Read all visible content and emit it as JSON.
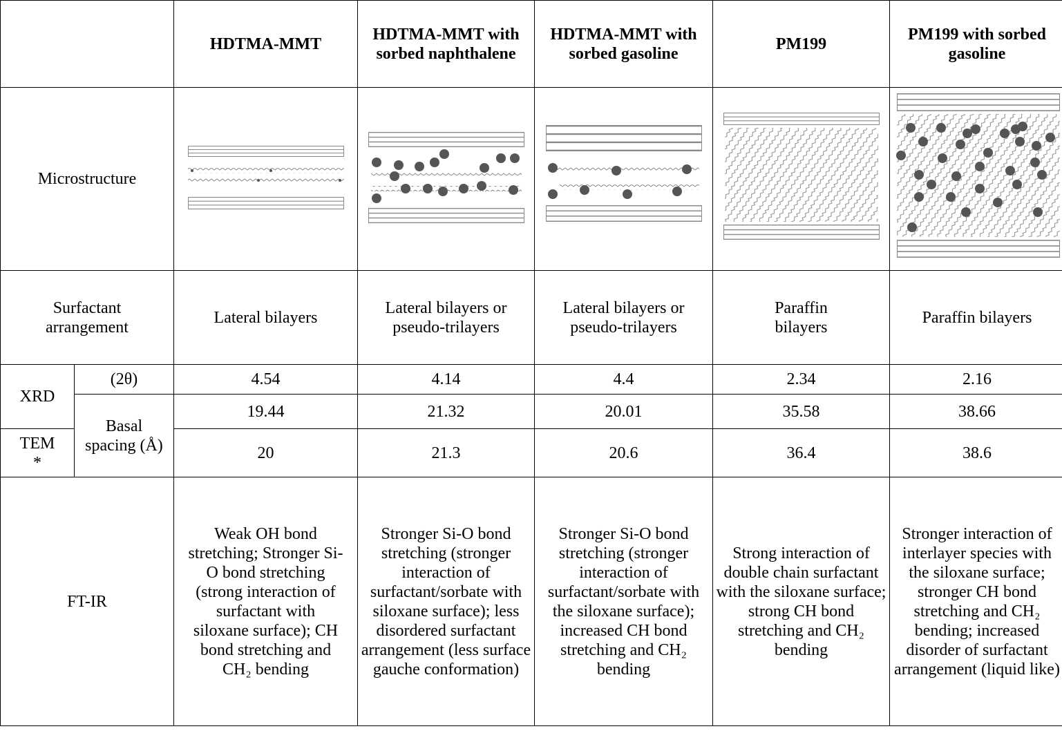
{
  "table": {
    "columns": [
      "HDTMA-MMT",
      "HDTMA-MMT with sorbed naphthalene",
      "HDTMA-MMT with sorbed gasoline",
      "PM199",
      "PM199 with sorbed gasoline"
    ],
    "microstructure": {
      "label": "Microstructure"
    },
    "surfactant": {
      "label": "Surfactant arrangement",
      "values": [
        "Lateral bilayers",
        "Lateral bilayers or pseudo-trilayers",
        "Lateral bilayers or pseudo-trilayers",
        "Paraffin bilayers",
        "Paraffin bilayers"
      ]
    },
    "xrd": {
      "label": "XRD",
      "theta_label": "(2θ)",
      "theta": [
        "4.54",
        "4.14",
        "4.4",
        "2.34",
        "2.16"
      ],
      "spacing": [
        "19.44",
        "21.32",
        "20.01",
        "35.58",
        "38.66"
      ]
    },
    "basal_label": "Basal spacing (Å)",
    "tem": {
      "label": "TEM *",
      "spacing": [
        "20",
        "21.3",
        "20.6",
        "36.4",
        "38.6"
      ]
    },
    "ftir": {
      "label": "FT-IR",
      "values": [
        "Weak OH bond stretching; Stronger Si-O bond stretching (strong interaction of surfactant with siloxane surface); CH bond stretching and CH₂ bending",
        "Stronger Si-O bond stretching (stronger interaction of surfactant/sorbate with siloxane surface); less disordered surfactant arrangement (less surface gauche conformation)",
        "Stronger Si-O bond stretching (stronger interaction of surfactant/sorbate with the siloxane surface); increased CH bond stretching and CH₂ bending",
        "Strong interaction of double chain surfactant with the siloxane surface; strong CH bond stretching and CH₂ bending",
        "Stronger interaction of interlayer species with the siloxane surface; stronger CH bond stretching and CH₂ bending; increased disorder of surfactant arrangement (liquid like)"
      ]
    }
  }
}
